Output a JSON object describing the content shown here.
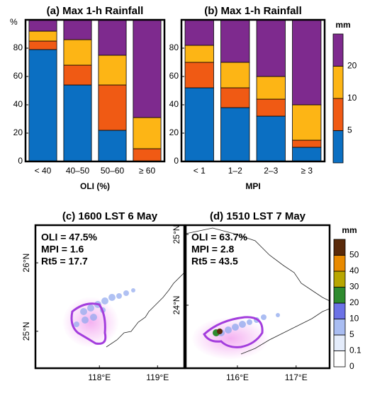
{
  "chart_data": [
    {
      "type": "bar",
      "stacked": true,
      "title": "(a) Max 1-h Rainfall",
      "x_label": "OLI (%)",
      "y_label": "%",
      "categories": [
        "< 40",
        "40–50",
        "50–60",
        "≥ 60"
      ],
      "series": [
        {
          "color": "#0b6fc2",
          "values": [
            79,
            54,
            22,
            0
          ]
        },
        {
          "color": "#f05a14",
          "values": [
            6,
            14,
            32,
            9
          ]
        },
        {
          "color": "#fdb515",
          "values": [
            7,
            18,
            21,
            22
          ]
        },
        {
          "color": "#7e2a8e",
          "values": [
            8,
            14,
            25,
            69
          ]
        }
      ],
      "ylim": [
        0,
        100
      ],
      "yticks": [
        0,
        20,
        40,
        60,
        80
      ]
    },
    {
      "type": "bar",
      "stacked": true,
      "title": "(b) Max 1-h Rainfall",
      "x_label": "MPI",
      "categories": [
        "< 1",
        "1–2",
        "2–3",
        "≥ 3"
      ],
      "series": [
        {
          "color": "#0b6fc2",
          "values": [
            52,
            38,
            32,
            10
          ]
        },
        {
          "color": "#f05a14",
          "values": [
            18,
            14,
            12,
            5
          ]
        },
        {
          "color": "#fdb515",
          "values": [
            12,
            18,
            16,
            25
          ]
        },
        {
          "color": "#7e2a8e",
          "values": [
            18,
            30,
            40,
            60
          ]
        }
      ],
      "ylim": [
        0,
        100
      ],
      "yticks": [
        0,
        20,
        40,
        60,
        80
      ],
      "colorbar": {
        "title": "mm",
        "ticks": [
          5,
          10,
          20
        ]
      }
    }
  ],
  "maps": [
    {
      "title": "(c) 1600 LST 6 May",
      "annotations": [
        "OLI = 47.5%",
        "MPI = 1.6",
        "Rt5 = 17.7"
      ],
      "xlim": [
        116.9,
        119.46
      ],
      "ylim": [
        24.46,
        26.55
      ],
      "xticks": [
        {
          "value": 118,
          "label": "118°E"
        },
        {
          "value": 119,
          "label": "119°E"
        }
      ],
      "yticks": [
        {
          "value": 25,
          "label": "25°N"
        },
        {
          "value": 26,
          "label": "26°N"
        }
      ]
    },
    {
      "title": "(d) 1510 LST 7 May",
      "annotations": [
        "OLI = 63.7%",
        "MPI = 2.8",
        "Rt5 = 43.5"
      ],
      "xlim": [
        115.12,
        117.57
      ],
      "ylim": [
        23.11,
        25.13
      ],
      "xticks": [
        {
          "value": 116,
          "label": "116°E"
        },
        {
          "value": 117,
          "label": "117°E"
        }
      ],
      "yticks": [
        {
          "value": 24,
          "label": "24°N"
        },
        {
          "value": 25,
          "label": "25°N"
        }
      ]
    }
  ],
  "map_colorbar": {
    "title": "mm",
    "ticks": [
      0,
      0.1,
      5,
      10,
      20,
      30,
      40,
      50
    ],
    "colors": [
      "#ffffff",
      "#e4ecfb",
      "#a9bdf2",
      "#6c72e6",
      "#2e8b2e",
      "#b8a600",
      "#e88a00",
      "#5a2a0a"
    ]
  }
}
